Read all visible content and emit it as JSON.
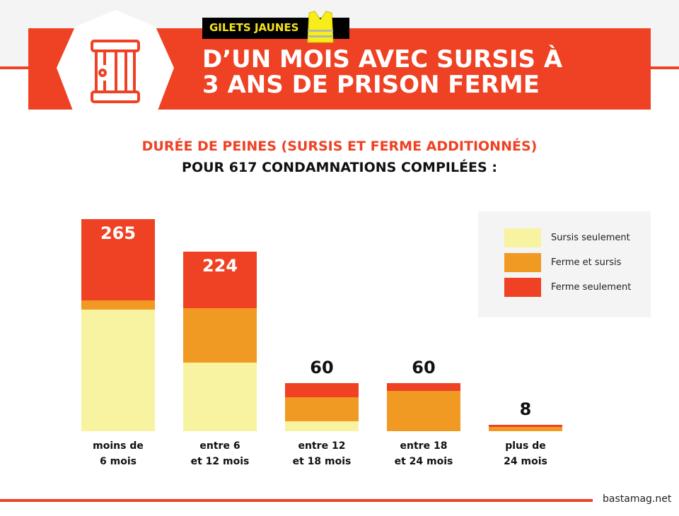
{
  "header": {
    "tag": "GILETS JAUNES",
    "title_line1": "D’UN MOIS AVEC SURSIS À",
    "title_line2": "3 ANS DE PRISON FERME",
    "icon": "prison-door-icon",
    "tag_icon": "yellow-vest-icon"
  },
  "colors": {
    "red": "#ef4123",
    "orange": "#f09a24",
    "yellow": "#f7f3a0"
  },
  "chart_data": {
    "type": "bar",
    "stacked": true,
    "title": "DURÉE DE PEINES (SURSIS ET FERME ADDITIONNÉS)",
    "subtitle": "POUR 617 CONDAMNATIONS COMPILÉES :",
    "categories": [
      [
        "moins de",
        "6 mois"
      ],
      [
        "entre 6",
        "et 12 mois"
      ],
      [
        "entre 12",
        "et 18 mois"
      ],
      [
        "entre 18",
        "et 24 mois"
      ],
      [
        "plus de",
        "24 mois"
      ]
    ],
    "totals": [
      "265",
      "224",
      "60",
      "60",
      "8"
    ],
    "series": [
      {
        "name": "Sursis seulement",
        "color": "#f7f3a0",
        "values": [
          152,
          86,
          12,
          0,
          0
        ]
      },
      {
        "name": "Ferme et sursis",
        "color": "#f09a24",
        "values": [
          11,
          68,
          30,
          50,
          5
        ]
      },
      {
        "name": "Ferme seulement",
        "color": "#ef4123",
        "values": [
          102,
          70,
          18,
          10,
          3
        ]
      }
    ],
    "legend": "top-right",
    "grid": false,
    "axes_visible": false
  },
  "footer": {
    "source": "bastamag.net"
  }
}
